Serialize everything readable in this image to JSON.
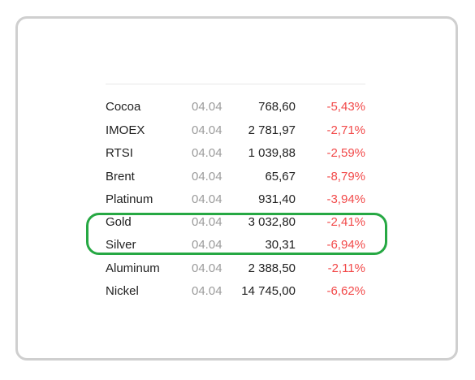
{
  "quotes": [
    {
      "name": "Cocoa",
      "date": "04.04",
      "value": "768,60",
      "change": "-5,43%"
    },
    {
      "name": "IMOEX",
      "date": "04.04",
      "value": "2 781,97",
      "change": "-2,71%"
    },
    {
      "name": "RTSI",
      "date": "04.04",
      "value": "1 039,88",
      "change": "-2,59%"
    },
    {
      "name": "Brent",
      "date": "04.04",
      "value": "65,67",
      "change": "-8,79%"
    },
    {
      "name": "Platinum",
      "date": "04.04",
      "value": "931,40",
      "change": "-3,94%"
    },
    {
      "name": "Gold",
      "date": "04.04",
      "value": "3 032,80",
      "change": "-2,41%"
    },
    {
      "name": "Silver",
      "date": "04.04",
      "value": "30,31",
      "change": "-6,94%"
    },
    {
      "name": "Aluminum",
      "date": "04.04",
      "value": "2 388,50",
      "change": "-2,11%"
    },
    {
      "name": "Nickel",
      "date": "04.04",
      "value": "14 745,00",
      "change": "-6,62%"
    }
  ],
  "colors": {
    "negative": "#f24a4a",
    "date": "#9b9b9b",
    "highlight": "#26a843",
    "frame": "#cfcfcf"
  },
  "highlighted_rows": [
    "Gold",
    "Silver"
  ]
}
